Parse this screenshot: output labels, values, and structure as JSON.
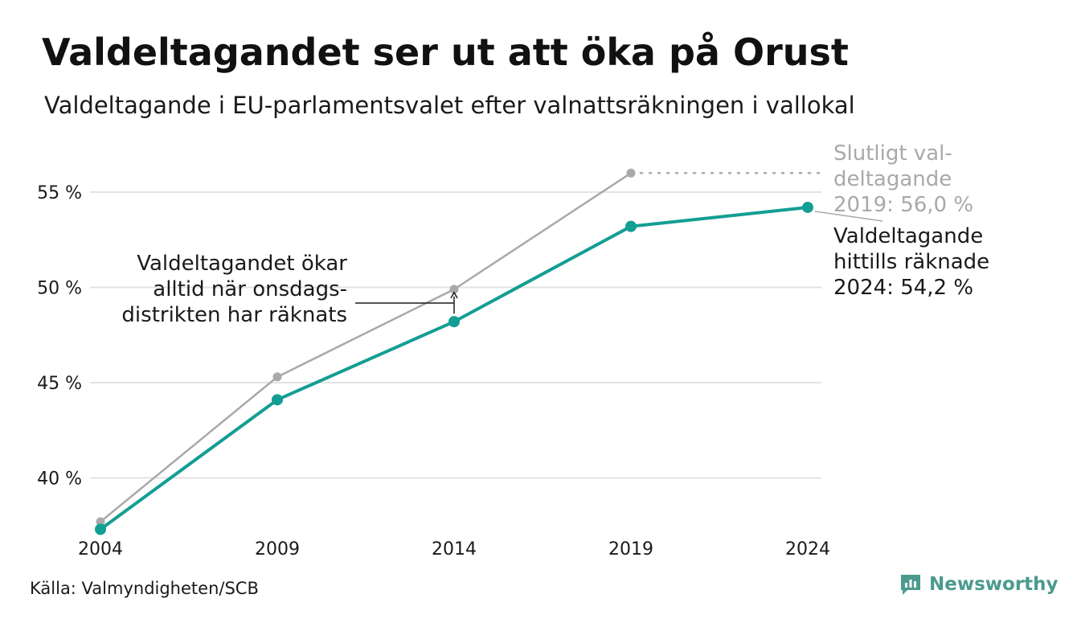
{
  "header": {
    "title": "Valdeltagandet ser ut att öka på Orust",
    "subtitle": "Valdeltagande i EU-parlamentsvalet efter valnattsräkningen i vallokal"
  },
  "footer": {
    "source": "Källa: Valmyndigheten/SCB",
    "brand": "Newsworthy"
  },
  "colors": {
    "accent": "#139e93",
    "secondary": "#a9a9a9",
    "grid": "#e3e3e3",
    "brand": "#4a9a8e"
  },
  "chart_data": {
    "type": "line",
    "x": [
      "2004",
      "2009",
      "2014",
      "2019",
      "2024"
    ],
    "ylim": [
      37,
      57
    ],
    "yticks": [
      40,
      45,
      50,
      55
    ],
    "ytick_labels": [
      "40 %",
      "45 %",
      "50 %",
      "55 %"
    ],
    "grid": true,
    "series": [
      {
        "key": "final",
        "values": [
          37.7,
          45.3,
          49.9,
          56.0,
          null
        ],
        "color": "#a9a9a9"
      },
      {
        "key": "election_night",
        "values": [
          37.3,
          44.1,
          48.2,
          53.2,
          54.2
        ],
        "color": "#139e93"
      }
    ],
    "annotations": {
      "final_label": [
        "Slutligt val-",
        "deltagande",
        "2019: 56,0 %"
      ],
      "current_label": [
        "Valdeltagande",
        "hittills räknade",
        "2024: 54,2 %"
      ],
      "note": [
        "Valdeltagandet ökar",
        "alltid när onsdags-",
        "distrikten har räknats"
      ]
    }
  }
}
